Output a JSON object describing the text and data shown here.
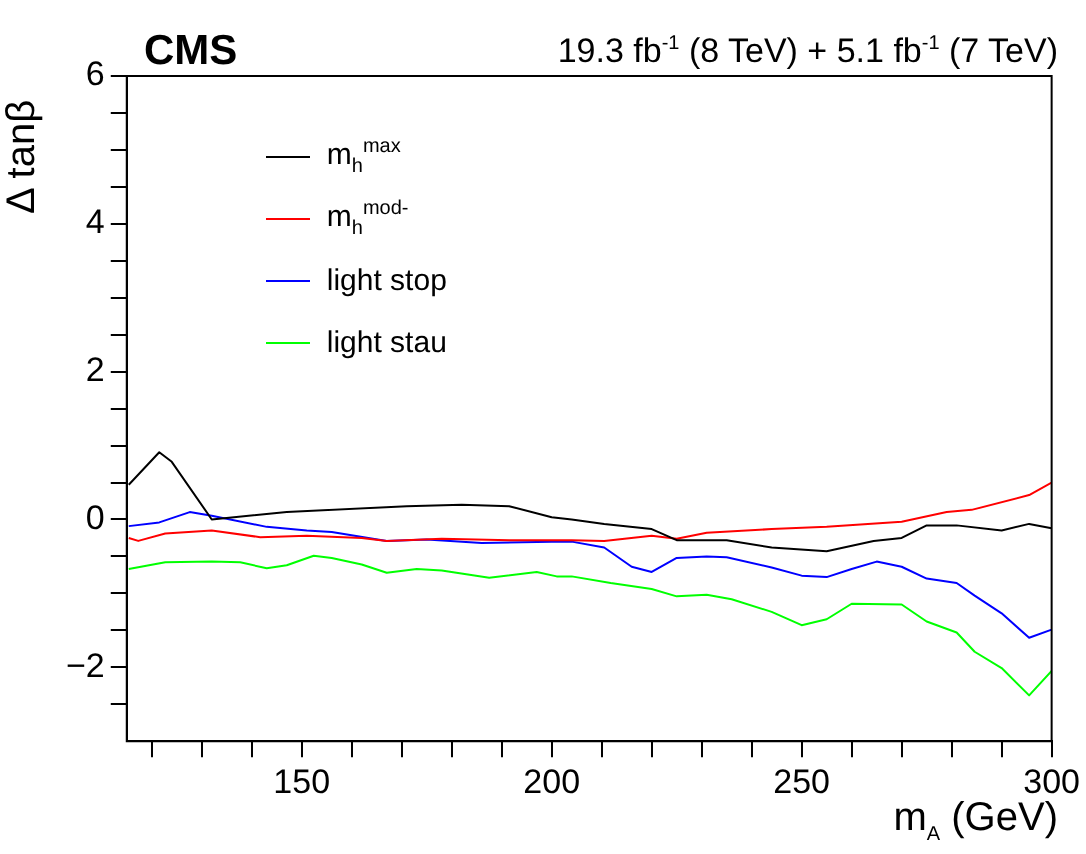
{
  "chart_data": {
    "type": "line",
    "title": "CMS",
    "subtitle": "19.3 fb$^{-1}$ (8 TeV) + 5.1 fb$^{-1}$ (7 TeV)",
    "xlabel": "m$_{A}$ (GeV)",
    "ylabel": "Δ tanβ",
    "xlim": [
      115,
      300
    ],
    "xticks": [
      {
        "value": 120,
        "label": null
      },
      {
        "value": 130,
        "label": null
      },
      {
        "value": 140,
        "label": null
      },
      150,
      {
        "value": 160,
        "label": null
      },
      {
        "value": 170,
        "label": null
      },
      {
        "value": 180,
        "label": null
      },
      {
        "value": 190,
        "label": null
      },
      200,
      {
        "value": 210,
        "label": null
      },
      {
        "value": 220,
        "label": null
      },
      {
        "value": 230,
        "label": null
      },
      {
        "value": 240,
        "label": null
      },
      250,
      {
        "value": 260,
        "label": null
      },
      {
        "value": 270,
        "label": null
      },
      {
        "value": 280,
        "label": null
      },
      {
        "value": 290,
        "label": null
      },
      300
    ],
    "ylim": [
      -3,
      6
    ],
    "yticks": [
      {
        "value": -2.5,
        "label": null
      },
      -2,
      {
        "value": -1.5,
        "label": null
      },
      {
        "value": -1,
        "label": null
      },
      {
        "value": -0.5,
        "label": null
      },
      0,
      {
        "value": 0.5,
        "label": null
      },
      {
        "value": 1,
        "label": null
      },
      {
        "value": 1.5,
        "label": null
      },
      2,
      {
        "value": 2.5,
        "label": null
      },
      {
        "value": 3,
        "label": null
      },
      {
        "value": 3.5,
        "label": null
      },
      4,
      {
        "value": 4.5,
        "label": null
      },
      {
        "value": 5,
        "label": null
      },
      {
        "value": 5.5,
        "label": null
      },
      6
    ],
    "legend": "top left",
    "marker": "none",
    "line_style": "solid",
    "series": [
      {
        "name": "m$_{h}$$^{max}$",
        "color": "#000000",
        "x": [
          115.4,
          121.5,
          124,
          132,
          147,
          171,
          182,
          191.5,
          200,
          204,
          210.5,
          220,
          225,
          235,
          244,
          255,
          264.4,
          270,
          275,
          281,
          290,
          295.5,
          300
        ],
        "values": [
          0.47,
          0.91,
          0.78,
          0,
          0.1,
          0.18,
          0.2,
          0.18,
          0.03,
          0,
          -0.06,
          -0.13,
          -0.28,
          -0.28,
          -0.38,
          -0.43,
          -0.29,
          -0.25,
          -0.08,
          -0.08,
          -0.15,
          -0.06,
          -0.12
        ]
      },
      {
        "name": "m$_{h}$$^{mod-}$",
        "color": "#ff0000",
        "x": [
          115.4,
          117.3,
          122.7,
          132,
          141.7,
          151,
          162,
          167,
          178,
          191.5,
          204,
          210.5,
          220,
          225,
          231,
          244,
          255,
          270,
          279,
          284,
          295.5,
          300
        ],
        "values": [
          -0.25,
          -0.29,
          -0.19,
          -0.15,
          -0.24,
          -0.22,
          -0.25,
          -0.29,
          -0.26,
          -0.28,
          -0.28,
          -0.29,
          -0.22,
          -0.26,
          -0.18,
          -0.13,
          -0.1,
          -0.03,
          0.1,
          0.13,
          0.33,
          0.5
        ]
      },
      {
        "name": "light stop",
        "color": "#0000ff",
        "x": [
          115.4,
          121.5,
          127.6,
          132,
          143,
          151,
          156,
          167,
          175,
          186,
          200,
          204,
          210.5,
          216,
          220,
          225,
          231,
          235,
          244,
          250,
          255,
          260,
          265,
          270,
          275,
          281,
          284.6,
          290,
          295.5,
          300
        ],
        "values": [
          -0.09,
          -0.04,
          0.1,
          0.05,
          -0.1,
          -0.15,
          -0.17,
          -0.29,
          -0.27,
          -0.32,
          -0.3,
          -0.3,
          -0.38,
          -0.64,
          -0.71,
          -0.52,
          -0.5,
          -0.51,
          -0.65,
          -0.76,
          -0.78,
          -0.67,
          -0.57,
          -0.64,
          -0.8,
          -0.86,
          -1.03,
          -1.27,
          -1.6,
          -1.49
        ]
      },
      {
        "name": "light stau",
        "color": "#00ff00",
        "x": [
          115.4,
          122.7,
          132,
          137.7,
          143,
          147,
          152.4,
          156,
          162,
          167,
          173,
          178,
          187.5,
          197,
          201,
          204,
          211.8,
          220,
          225,
          231,
          236,
          244,
          250,
          255,
          260,
          270,
          275,
          281,
          284.6,
          290,
          295.5,
          300
        ],
        "values": [
          -0.67,
          -0.58,
          -0.57,
          -0.58,
          -0.66,
          -0.62,
          -0.49,
          -0.52,
          -0.61,
          -0.72,
          -0.67,
          -0.69,
          -0.79,
          -0.71,
          -0.77,
          -0.77,
          -0.86,
          -0.94,
          -1.04,
          -1.02,
          -1.08,
          -1.25,
          -1.43,
          -1.35,
          -1.14,
          -1.15,
          -1.38,
          -1.53,
          -1.79,
          -2.01,
          -2.38,
          -2.05
        ]
      }
    ]
  }
}
